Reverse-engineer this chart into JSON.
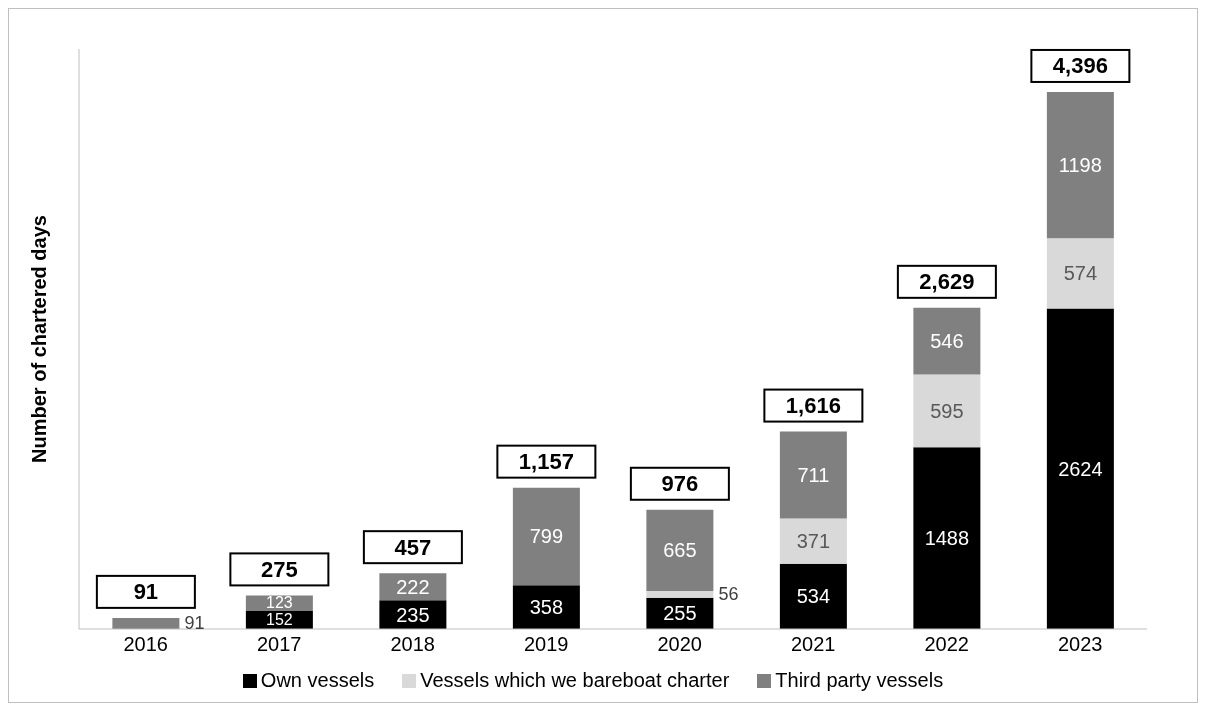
{
  "chart_data": {
    "type": "bar",
    "stacked": true,
    "ylabel": "Number of chartered days",
    "categories": [
      "2016",
      "2017",
      "2018",
      "2019",
      "2020",
      "2021",
      "2022",
      "2023"
    ],
    "series": [
      {
        "name": "Own vessels",
        "color": "#000000",
        "values": [
          null,
          152,
          235,
          358,
          255,
          534,
          1488,
          2624
        ]
      },
      {
        "name": "Vessels which we bareboat charter",
        "color": "#d9d9d9",
        "values": [
          null,
          null,
          null,
          null,
          56,
          371,
          595,
          574
        ]
      },
      {
        "name": "Third party vessels",
        "color": "#808080",
        "values": [
          91,
          123,
          222,
          799,
          665,
          711,
          546,
          1198
        ]
      }
    ],
    "totals": [
      "91",
      "275",
      "457",
      "1,157",
      "976",
      "1,616",
      "2,629",
      "4,396"
    ],
    "data_labels": true,
    "grid": false,
    "legend": "bottom",
    "tick_labels": "x"
  }
}
